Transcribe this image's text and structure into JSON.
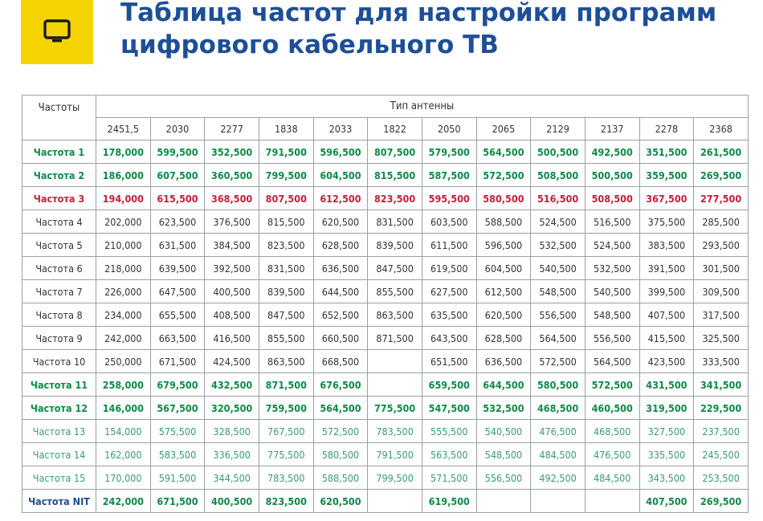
{
  "title_lines": [
    "Таблица частот для настройки программ",
    "цифрового кабельного ТВ"
  ],
  "logo": {
    "icon": "tv-icon",
    "color": "#f4d400"
  },
  "colors": {
    "title": "#1d4f97",
    "highlight_green": "#0d8a48",
    "highlight_red": "#c31f3b",
    "light_green": "#3a9b6e",
    "nit_label": "#1f4d8f"
  },
  "table": {
    "corner_header": "Частоты",
    "group_header": "Тип антенны",
    "antenna_types": [
      "2451,5",
      "2030",
      "2277",
      "1838",
      "2033",
      "1822",
      "2050",
      "2065",
      "2129",
      "2137",
      "2278",
      "2368"
    ],
    "rows": [
      {
        "label": "Частота 1",
        "style": "green",
        "values": [
          "178,000",
          "599,500",
          "352,500",
          "791,500",
          "596,500",
          "807,500",
          "579,500",
          "564,500",
          "500,500",
          "492,500",
          "351,500",
          "261,500"
        ]
      },
      {
        "label": "Частота 2",
        "style": "green",
        "values": [
          "186,000",
          "607,500",
          "360,500",
          "799,500",
          "604,500",
          "815,500",
          "587,500",
          "572,500",
          "508,500",
          "500,500",
          "359,500",
          "269,500"
        ]
      },
      {
        "label": "Частота 3",
        "style": "red",
        "values": [
          "194,000",
          "615,500",
          "368,500",
          "807,500",
          "612,500",
          "823,500",
          "595,500",
          "580,500",
          "516,500",
          "508,500",
          "367,500",
          "277,500"
        ]
      },
      {
        "label": "Частота 4",
        "style": "normal",
        "values": [
          "202,000",
          "623,500",
          "376,500",
          "815,500",
          "620,500",
          "831,500",
          "603,500",
          "588,500",
          "524,500",
          "516,500",
          "375,500",
          "285,500"
        ]
      },
      {
        "label": "Частота 5",
        "style": "normal",
        "values": [
          "210,000",
          "631,500",
          "384,500",
          "823,500",
          "628,500",
          "839,500",
          "611,500",
          "596,500",
          "532,500",
          "524,500",
          "383,500",
          "293,500"
        ]
      },
      {
        "label": "Частота 6",
        "style": "normal",
        "values": [
          "218,000",
          "639,500",
          "392,500",
          "831,500",
          "636,500",
          "847,500",
          "619,500",
          "604,500",
          "540,500",
          "532,500",
          "391,500",
          "301,500"
        ]
      },
      {
        "label": "Частота 7",
        "style": "normal",
        "values": [
          "226,000",
          "647,500",
          "400,500",
          "839,500",
          "644,500",
          "855,500",
          "627,500",
          "612,500",
          "548,500",
          "540,500",
          "399,500",
          "309,500"
        ]
      },
      {
        "label": "Частота 8",
        "style": "normal",
        "values": [
          "234,000",
          "655,500",
          "408,500",
          "847,500",
          "652,500",
          "863,500",
          "635,500",
          "620,500",
          "556,500",
          "548,500",
          "407,500",
          "317,500"
        ]
      },
      {
        "label": "Частота 9",
        "style": "normal",
        "values": [
          "242,000",
          "663,500",
          "416,500",
          "855,500",
          "660,500",
          "871,500",
          "643,500",
          "628,500",
          "564,500",
          "556,500",
          "415,500",
          "325,500"
        ]
      },
      {
        "label": "Частота 10",
        "style": "normal",
        "values": [
          "250,000",
          "671,500",
          "424,500",
          "863,500",
          "668,500",
          "",
          "651,500",
          "636,500",
          "572,500",
          "564,500",
          "423,500",
          "333,500"
        ]
      },
      {
        "label": "Частота 11",
        "style": "green",
        "values": [
          "258,000",
          "679,500",
          "432,500",
          "871,500",
          "676,500",
          "",
          "659,500",
          "644,500",
          "580,500",
          "572,500",
          "431,500",
          "341,500"
        ]
      },
      {
        "label": "Частота 12",
        "style": "green",
        "values": [
          "146,000",
          "567,500",
          "320,500",
          "759,500",
          "564,500",
          "775,500",
          "547,500",
          "532,500",
          "468,500",
          "460,500",
          "319,500",
          "229,500"
        ]
      },
      {
        "label": "Частота 13",
        "style": "lightgreen",
        "values": [
          "154,000",
          "575,500",
          "328,500",
          "767,500",
          "572,500",
          "783,500",
          "555,500",
          "540,500",
          "476,500",
          "468,500",
          "327,500",
          "237,500"
        ]
      },
      {
        "label": "Частота 14",
        "style": "lightgreen",
        "values": [
          "162,000",
          "583,500",
          "336,500",
          "775,500",
          "580,500",
          "791,500",
          "563,500",
          "548,500",
          "484,500",
          "476,500",
          "335,500",
          "245,500"
        ]
      },
      {
        "label": "Частота 15",
        "style": "lightgreen",
        "values": [
          "170,000",
          "591,500",
          "344,500",
          "783,500",
          "588,500",
          "799,500",
          "571,500",
          "556,500",
          "492,500",
          "484,500",
          "343,500",
          "253,500"
        ]
      },
      {
        "label": "Частота NIT",
        "style": "bluebold",
        "values": [
          "242,000",
          "671,500",
          "400,500",
          "823,500",
          "620,500",
          "",
          "619,500",
          "",
          "",
          "",
          "407,500",
          "269,500"
        ]
      }
    ]
  }
}
